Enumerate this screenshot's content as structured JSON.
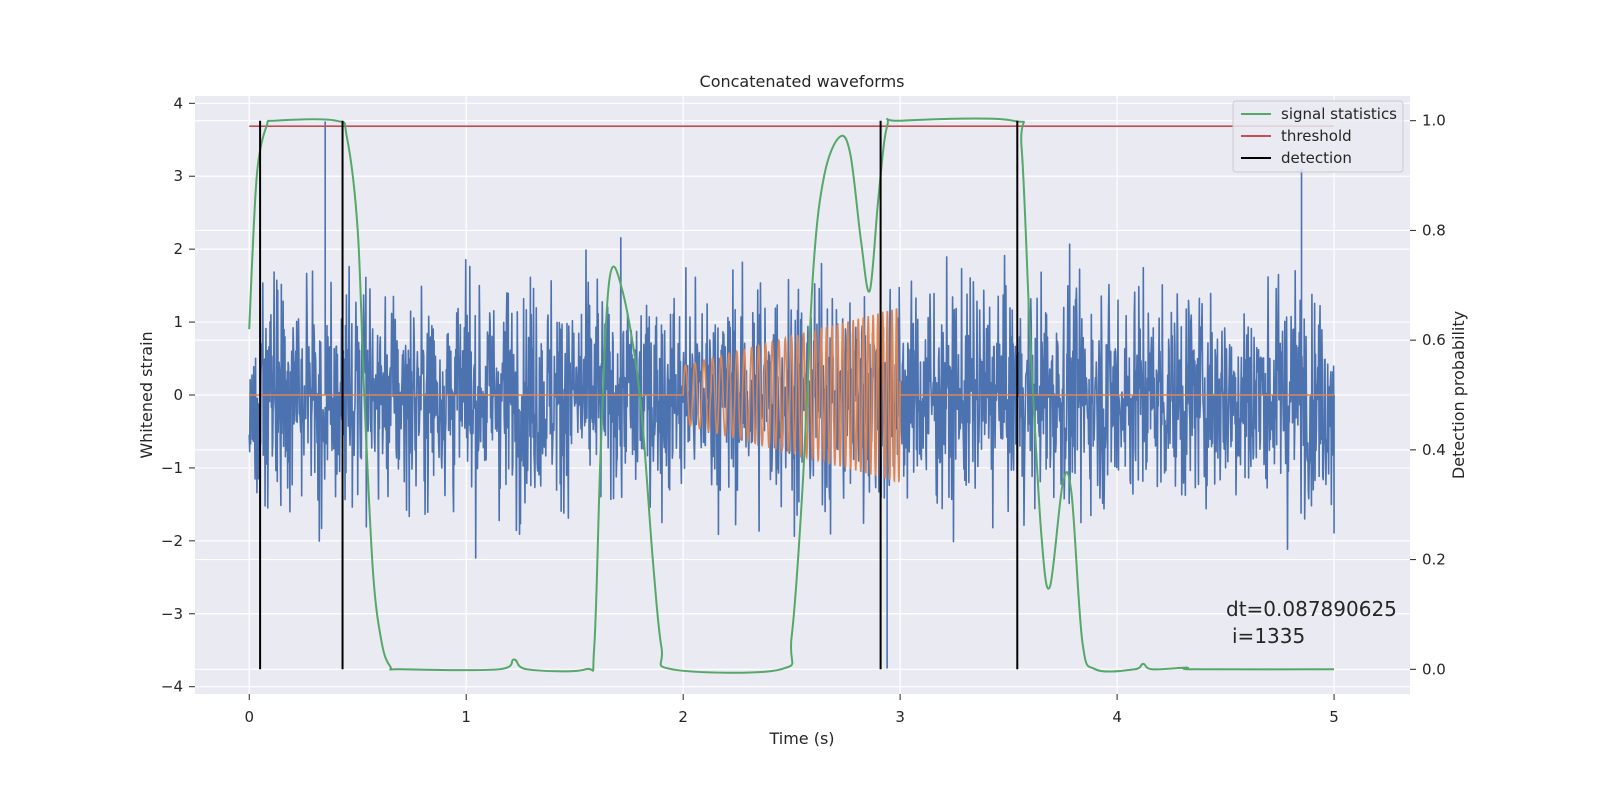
{
  "chart_data": {
    "type": "line",
    "title": "Concatenated waveforms",
    "xlabel": "Time (s)",
    "ylabel_left": "Whitened strain",
    "ylabel_right": "Detection probability",
    "xlim": [
      -0.25,
      5.35
    ],
    "ylim_left": [
      -4.1,
      4.1
    ],
    "ylim_right": [
      -0.045,
      1.045
    ],
    "x_ticks": [
      "0",
      "1",
      "2",
      "3",
      "4",
      "5"
    ],
    "y_left_ticks": [
      "−4",
      "−3",
      "−2",
      "−1",
      "0",
      "1",
      "2",
      "3",
      "4"
    ],
    "y_right_ticks": [
      "0.0",
      "0.2",
      "0.4",
      "0.6",
      "0.8",
      "1.0"
    ],
    "grid": true,
    "legend_position": "top-right",
    "colors": {
      "noise": "#4c72b0",
      "waveform": "#dd8452",
      "signal_statistics": "#55a868",
      "threshold": "#c44e52",
      "detection": "#000000",
      "background": "#eaeaf2"
    },
    "series": [
      {
        "label": "",
        "axis": "left",
        "color_key": "noise",
        "description": "whitened noise, 0 to 5 s, amplitude roughly ±2 (peaks to ±3.7)",
        "x_range": [
          0,
          5
        ],
        "envelope": 0.75,
        "peak_extremes": [
          [
            0.35,
            3.75
          ],
          [
            2.94,
            -3.75
          ],
          [
            4.85,
            3.1
          ],
          [
            5.0,
            -1.9
          ]
        ]
      },
      {
        "label": "",
        "axis": "left",
        "color_key": "waveform",
        "description": "injected chirp, flat 0 except 2.0 to 3.0 s",
        "x_range": [
          0,
          5
        ],
        "chirp_start": 2.0,
        "chirp_end": 3.0,
        "chirp_amp_start": 0.4,
        "chirp_amp_end": 1.2,
        "chirp_freq_start": 22,
        "chirp_freq_end": 48
      },
      {
        "label": "signal statistics",
        "axis": "right",
        "color_key": "signal_statistics",
        "points": [
          [
            0.0,
            0.62
          ],
          [
            0.02,
            0.8
          ],
          [
            0.04,
            0.92
          ],
          [
            0.08,
            0.99
          ],
          [
            0.12,
            1.0
          ],
          [
            0.4,
            1.0
          ],
          [
            0.45,
            0.97
          ],
          [
            0.5,
            0.8
          ],
          [
            0.53,
            0.5
          ],
          [
            0.57,
            0.18
          ],
          [
            0.61,
            0.05
          ],
          [
            0.65,
            0.005
          ],
          [
            0.7,
            0.0
          ],
          [
            1.15,
            0.0
          ],
          [
            1.22,
            0.018
          ],
          [
            1.28,
            0.0
          ],
          [
            1.55,
            0.0
          ],
          [
            1.59,
            0.04
          ],
          [
            1.62,
            0.4
          ],
          [
            1.66,
            0.71
          ],
          [
            1.72,
            0.69
          ],
          [
            1.8,
            0.5
          ],
          [
            1.86,
            0.2
          ],
          [
            1.9,
            0.04
          ],
          [
            1.95,
            0.0
          ],
          [
            2.45,
            0.0
          ],
          [
            2.5,
            0.06
          ],
          [
            2.55,
            0.33
          ],
          [
            2.6,
            0.73
          ],
          [
            2.65,
            0.9
          ],
          [
            2.72,
            0.97
          ],
          [
            2.77,
            0.94
          ],
          [
            2.82,
            0.78
          ],
          [
            2.86,
            0.69
          ],
          [
            2.9,
            0.86
          ],
          [
            2.94,
            0.99
          ],
          [
            3.0,
            1.0
          ],
          [
            3.52,
            1.0
          ],
          [
            3.56,
            0.95
          ],
          [
            3.6,
            0.6
          ],
          [
            3.65,
            0.25
          ],
          [
            3.69,
            0.15
          ],
          [
            3.75,
            0.34
          ],
          [
            3.79,
            0.32
          ],
          [
            3.84,
            0.05
          ],
          [
            3.9,
            0.0
          ],
          [
            4.08,
            0.0
          ],
          [
            4.12,
            0.01
          ],
          [
            4.16,
            0.0
          ],
          [
            4.32,
            0.003
          ],
          [
            4.36,
            0.0
          ],
          [
            5.0,
            0.0
          ]
        ]
      },
      {
        "label": "threshold",
        "axis": "right",
        "color_key": "threshold",
        "points": [
          [
            0,
            0.99
          ],
          [
            5,
            0.99
          ]
        ]
      },
      {
        "label": "detection",
        "axis": "right",
        "color_key": "detection",
        "vlines": [
          0.05,
          0.43,
          2.91,
          3.54
        ],
        "vline_range": [
          0,
          1
        ]
      }
    ],
    "annotations": [
      "dt=0.087890625",
      "i=1335"
    ]
  }
}
